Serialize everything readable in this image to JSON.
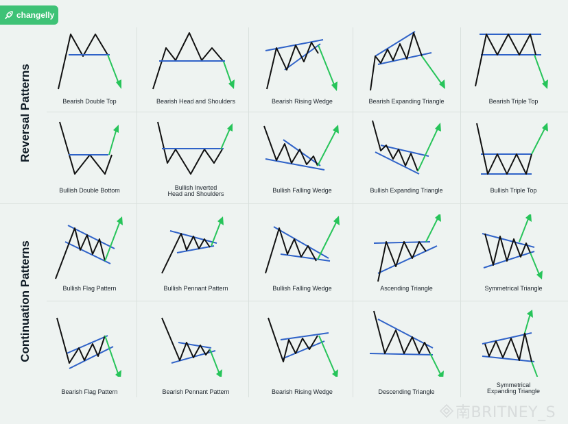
{
  "brand": "changelly",
  "sections": [
    {
      "label": "Reversal Patterns"
    },
    {
      "label": "Continuation Patterns"
    }
  ],
  "patterns": [
    {
      "name": "Bearish Double Top"
    },
    {
      "name": "Bearish Head and Shoulders"
    },
    {
      "name": "Bearish Rising Wedge"
    },
    {
      "name": "Bearish Expanding Triangle"
    },
    {
      "name": "Bearish Triple Top"
    },
    {
      "name": "Bullish Double Bottom"
    },
    {
      "name": "Bullish Inverted\nHead and Shoulders"
    },
    {
      "name": "Bullish Falling Wedge"
    },
    {
      "name": "Bullish Expanding Triangle"
    },
    {
      "name": "Bullish Triple Top"
    },
    {
      "name": "Bullish Flag Pattern"
    },
    {
      "name": "Bullish Pennant Pattern"
    },
    {
      "name": "Bullish Falling Wedge"
    },
    {
      "name": "Ascending Triangle"
    },
    {
      "name": "Symmetrical Triangle"
    },
    {
      "name": "Bearish Flag Pattern"
    },
    {
      "name": "Bearish Pennant Pattern"
    },
    {
      "name": "Bearish Rising Wedge"
    },
    {
      "name": "Descending Triangle"
    },
    {
      "name": "Symmetrical\nExpanding Triangle"
    }
  ],
  "watermark": "南BRITNEY_S",
  "colors": {
    "price": "#111111",
    "trend": "#2f62c8",
    "arrow": "#27c45a",
    "brand": "#3ec276"
  }
}
